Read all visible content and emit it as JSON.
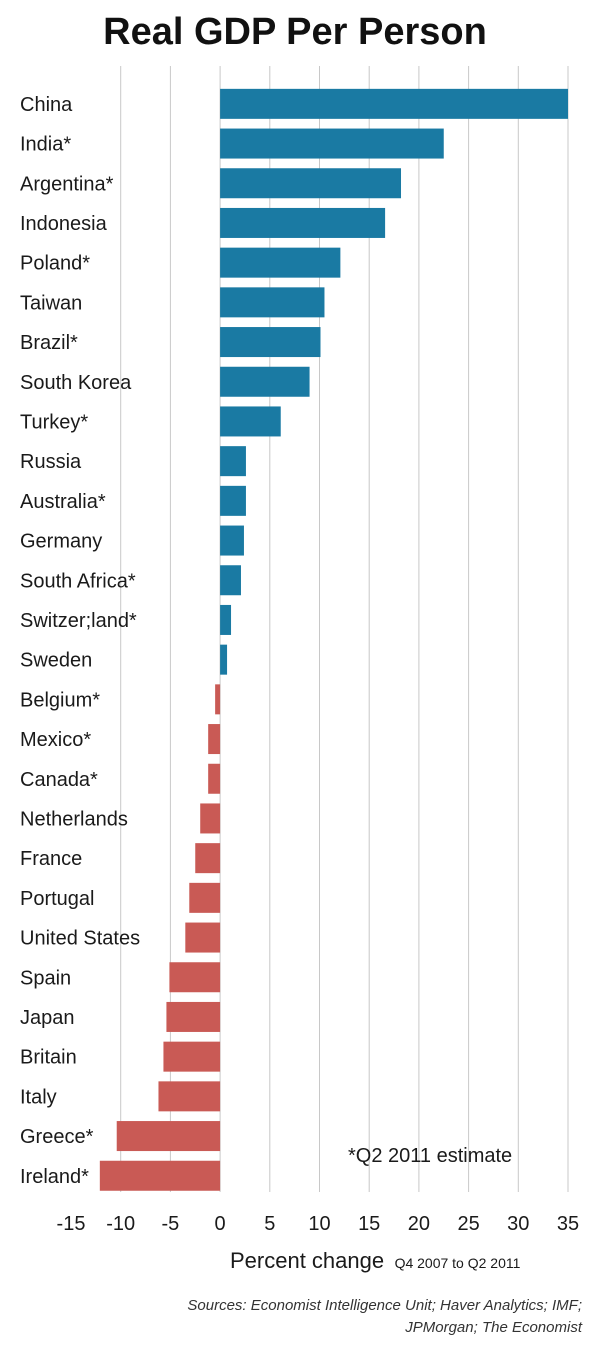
{
  "chart_data": {
    "type": "bar",
    "orientation": "horizontal",
    "title": "Real GDP Per Person",
    "xlabel": "Percent change",
    "xlabel_sub": "Q4 2007 to Q2 2011",
    "note": "*Q2 2011 estimate",
    "source_lines": [
      "Sources: Economist Intelligence Unit; Haver Analytics; IMF;",
      "JPMorgan; The Economist"
    ],
    "xlim": [
      -15,
      35
    ],
    "xticks": [
      -15,
      -10,
      -5,
      0,
      5,
      10,
      15,
      20,
      25,
      30,
      35
    ],
    "grid": true,
    "positive_color": "#1a7aa3",
    "negative_color": "#c95a55",
    "categories": [
      "China",
      "India*",
      "Argentina*",
      "Indonesia",
      "Poland*",
      "Taiwan",
      "Brazil*",
      "South Korea",
      "Turkey*",
      "Russia",
      "Australia*",
      "Germany",
      "South Africa*",
      "Switzer;land*",
      "Sweden",
      "Belgium*",
      "Mexico*",
      "Canada*",
      "Netherlands",
      "France",
      "Portugal",
      "United States",
      "Spain",
      "Japan",
      "Britain",
      "Italy",
      "Greece*",
      "Ireland*"
    ],
    "values": [
      35,
      22.5,
      18.2,
      16.6,
      12.1,
      10.5,
      10.1,
      9.0,
      6.1,
      2.6,
      2.6,
      2.4,
      2.1,
      1.1,
      0.7,
      -0.5,
      -1.2,
      -1.2,
      -2.0,
      -2.5,
      -3.1,
      -3.5,
      -5.1,
      -5.4,
      -5.7,
      -6.2,
      -10.4,
      -12.1
    ]
  }
}
